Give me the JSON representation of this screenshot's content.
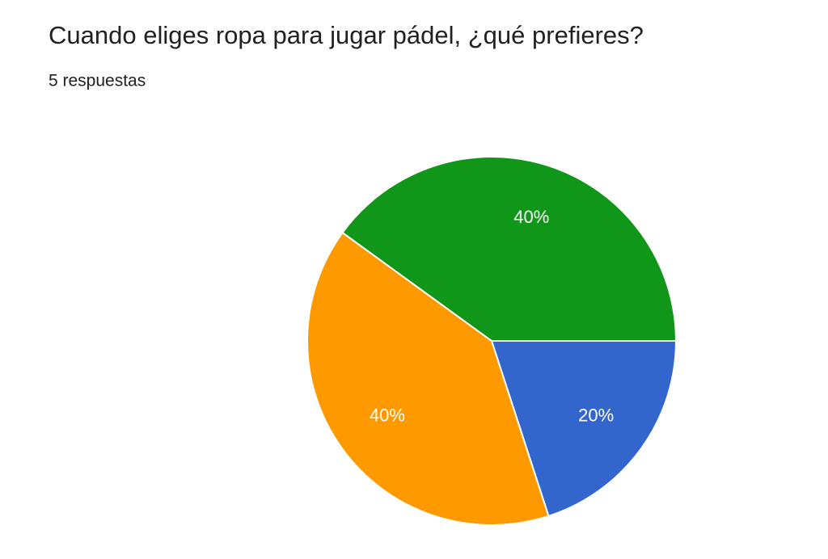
{
  "chart_data": {
    "type": "pie",
    "title": "Cuando eliges ropa para jugar pádel, ¿qué prefieres?",
    "subtitle": "5 respuestas",
    "categories": [
      null,
      null,
      null
    ],
    "values": [
      20,
      40,
      40
    ],
    "value_labels": [
      "20%",
      "40%",
      "40%"
    ],
    "colors": [
      "#3366cc",
      "#ff9900",
      "#109618"
    ]
  }
}
